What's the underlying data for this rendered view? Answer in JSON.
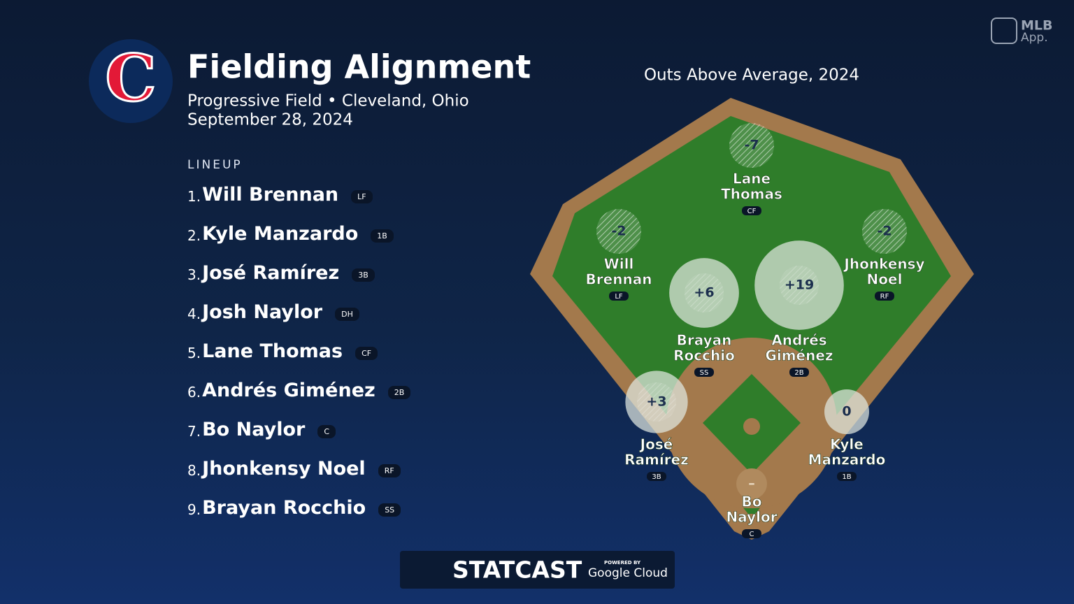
{
  "header": {
    "team_logo": "C",
    "title": "Fielding Alignment",
    "subtitle": "Progressive Field • Cleveland, Ohio",
    "date": "September 28, 2024"
  },
  "lineup": {
    "label": "LINEUP",
    "players": [
      {
        "rank": "1.",
        "name": "Will Brennan",
        "position": "LF"
      },
      {
        "rank": "2.",
        "name": "Kyle Manzardo",
        "position": "1B"
      },
      {
        "rank": "3.",
        "name": "José Ramírez",
        "position": "3B"
      },
      {
        "rank": "4.",
        "name": "Josh Naylor",
        "position": "DH"
      },
      {
        "rank": "5.",
        "name": "Lane Thomas",
        "position": "CF"
      },
      {
        "rank": "6.",
        "name": "Andrés Giménez",
        "position": "2B"
      },
      {
        "rank": "7.",
        "name": "Bo Naylor",
        "position": "C"
      },
      {
        "rank": "8.",
        "name": "Jhonkensy Noel",
        "position": "RF"
      },
      {
        "rank": "9.",
        "name": "Brayan Rocchio",
        "position": "SS"
      }
    ]
  },
  "field": {
    "title": "Outs Above Average, 2024",
    "players": [
      {
        "oaa": {
          "value": -7,
          "label": "-7"
        },
        "name_lines": [
          "Lane",
          "Thomas"
        ],
        "position": "CF"
      },
      {
        "oaa": {
          "value": -2,
          "label": "-2"
        },
        "name_lines": [
          "Will",
          "Brennan"
        ],
        "position": "LF"
      },
      {
        "oaa": {
          "value": -2,
          "label": "-2"
        },
        "name_lines": [
          "Jhonkensy",
          "Noel"
        ],
        "position": "RF"
      },
      {
        "oaa": {
          "value": 6,
          "label": "+6"
        },
        "name_lines": [
          "Brayan",
          "Rocchio"
        ],
        "position": "SS"
      },
      {
        "oaa": {
          "value": 19,
          "label": "+19"
        },
        "name_lines": [
          "Andrés",
          "Giménez"
        ],
        "position": "2B"
      },
      {
        "oaa": {
          "value": 3,
          "label": "+3"
        },
        "name_lines": [
          "José",
          "Ramírez"
        ],
        "position": "3B"
      },
      {
        "oaa": {
          "value": 0,
          "label": "0"
        },
        "name_lines": [
          "Kyle",
          "Manzardo"
        ],
        "position": "1B"
      },
      {
        "oaa": {
          "value": null,
          "label": "–"
        },
        "name_lines": [
          "Bo",
          "Naylor"
        ],
        "position": "C"
      }
    ]
  },
  "branding": {
    "app_name": "MLB",
    "app_label": "App.",
    "statcast": "STATCAST",
    "powered_by": "POWERED BY",
    "cloud": "Google Cloud"
  }
}
